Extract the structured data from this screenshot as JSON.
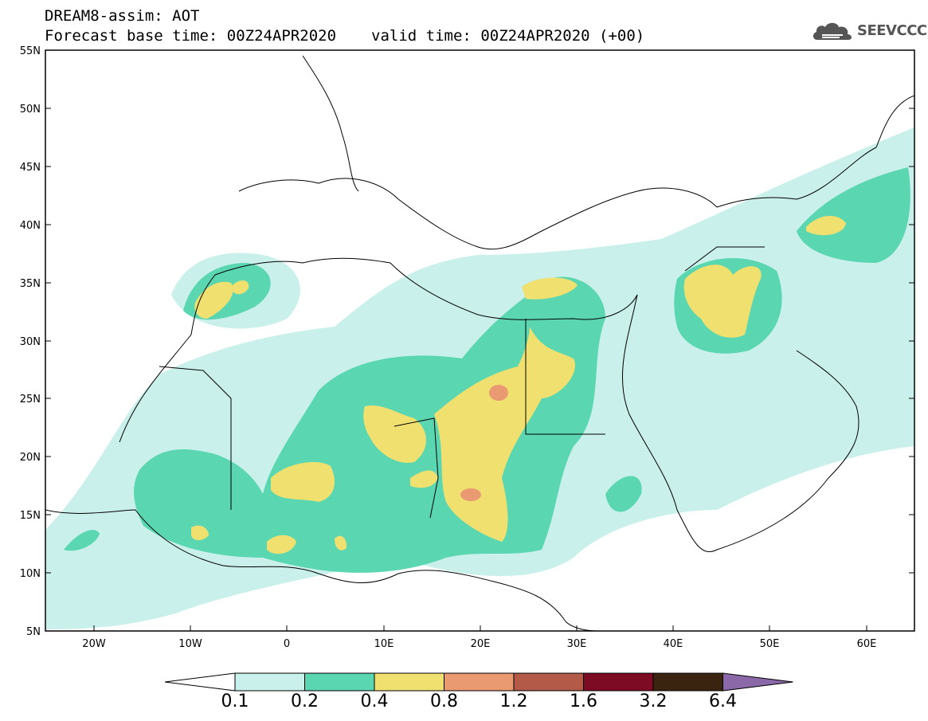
{
  "header": {
    "line1": "DREAM8-assim: AOT",
    "base_time": "Forecast base time: 00Z24APR2020",
    "valid_time": "valid time: 00Z24APR2020 (+00)"
  },
  "logo": {
    "text": "SEEVCCC",
    "icon": "cloud-icon"
  },
  "map": {
    "lat_labels": [
      "55N",
      "50N",
      "45N",
      "40N",
      "35N",
      "30N",
      "25N",
      "20N",
      "15N",
      "10N",
      "5N"
    ],
    "lon_labels": [
      "20W",
      "10W",
      "0",
      "10E",
      "20E",
      "30E",
      "40E",
      "50E",
      "60E"
    ]
  },
  "colorbar": {
    "colors": [
      "#ffffff",
      "#c9f0ea",
      "#5ad6b0",
      "#f0e070",
      "#e99a70",
      "#b35a48",
      "#7d0b24",
      "#3a2410",
      "#8b68a8"
    ],
    "labels": [
      "0.1",
      "0.2",
      "0.4",
      "0.8",
      "1.2",
      "1.6",
      "3.2",
      "6.4"
    ]
  }
}
